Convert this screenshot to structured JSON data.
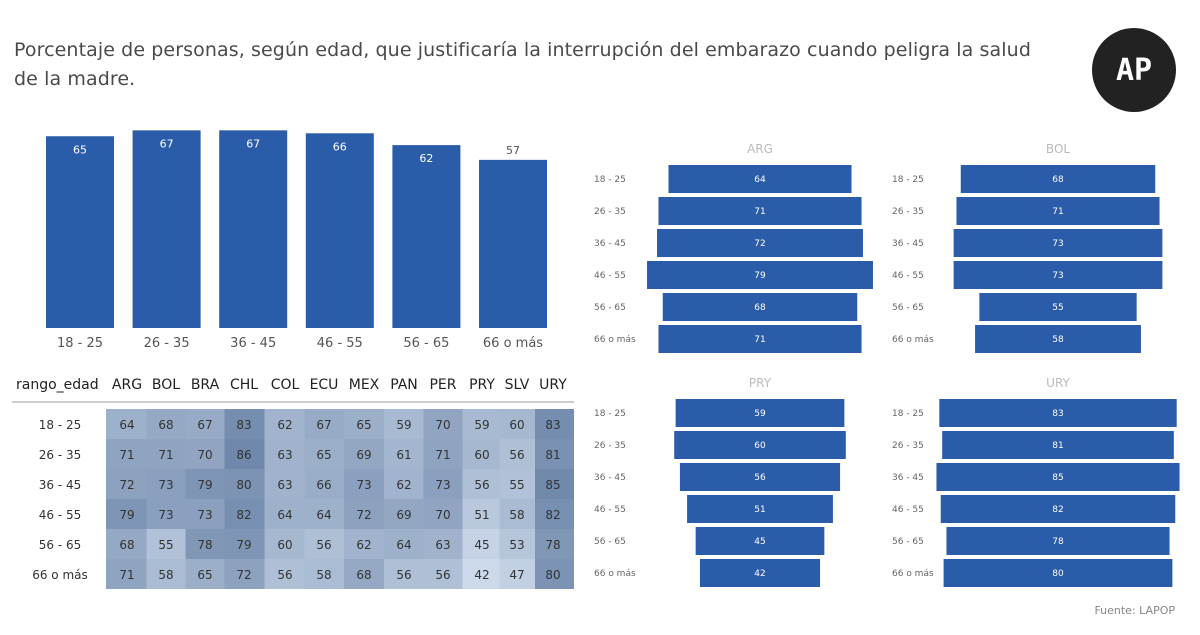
{
  "title": "Porcentaje de personas, según edad, que  justificaría la interrupción del embarazo cuando peligra la salud de la madre.",
  "logo": "AP",
  "source": "Fuente: LAPOP",
  "colors": {
    "bar": "#2b5ca9",
    "heat_low": "#ccd9ea",
    "heat_high": "#6f88ab"
  },
  "chart_data": [
    {
      "type": "bar",
      "categories": [
        "18 - 25",
        "26 - 35",
        "36 - 45",
        "46 - 55",
        "56 - 65",
        "66 o más"
      ],
      "values": [
        65,
        67,
        67,
        66,
        62,
        57
      ]
    },
    {
      "type": "heatmap",
      "row_header": "rango_edad",
      "columns": [
        "ARG",
        "BOL",
        "BRA",
        "CHL",
        "COL",
        "ECU",
        "MEX",
        "PAN",
        "PER",
        "PRY",
        "SLV",
        "URY"
      ],
      "rows": [
        "18 - 25",
        "26 - 35",
        "36 - 45",
        "46 - 55",
        "56 - 65",
        "66 o más"
      ],
      "values": [
        [
          64,
          68,
          67,
          83,
          62,
          67,
          65,
          59,
          70,
          59,
          60,
          83
        ],
        [
          71,
          71,
          70,
          86,
          63,
          65,
          69,
          61,
          71,
          60,
          56,
          81
        ],
        [
          72,
          73,
          79,
          80,
          63,
          66,
          73,
          62,
          73,
          56,
          55,
          85
        ],
        [
          79,
          73,
          73,
          82,
          64,
          64,
          72,
          69,
          70,
          51,
          58,
          82
        ],
        [
          68,
          55,
          78,
          79,
          60,
          56,
          62,
          64,
          63,
          45,
          53,
          78
        ],
        [
          71,
          58,
          65,
          72,
          56,
          58,
          68,
          56,
          56,
          42,
          47,
          80
        ]
      ]
    },
    {
      "type": "bar",
      "title": "ARG",
      "categories": [
        "18 - 25",
        "26 - 35",
        "36 - 45",
        "46 - 55",
        "56 - 65",
        "66 o más"
      ],
      "values": [
        64,
        71,
        72,
        79,
        68,
        71
      ]
    },
    {
      "type": "bar",
      "title": "BOL",
      "categories": [
        "18 - 25",
        "26 - 35",
        "36 - 45",
        "46 - 55",
        "56 - 65",
        "66 o más"
      ],
      "values": [
        68,
        71,
        73,
        73,
        55,
        58
      ]
    },
    {
      "type": "bar",
      "title": "PRY",
      "categories": [
        "18 - 25",
        "26 - 35",
        "36 - 45",
        "46 - 55",
        "56 - 65",
        "66 o más"
      ],
      "values": [
        59,
        60,
        56,
        51,
        45,
        42
      ]
    },
    {
      "type": "bar",
      "title": "URY",
      "categories": [
        "18 - 25",
        "26 - 35",
        "36 - 45",
        "46 - 55",
        "56 - 65",
        "66 o más"
      ],
      "values": [
        83,
        81,
        85,
        82,
        78,
        80
      ]
    }
  ]
}
